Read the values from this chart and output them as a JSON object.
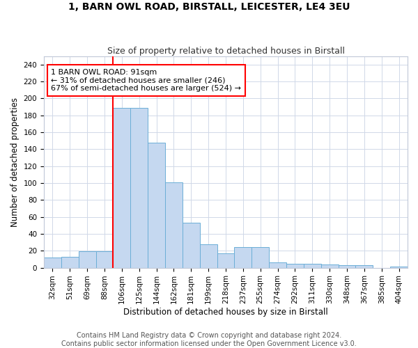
{
  "title": "1, BARN OWL ROAD, BIRSTALL, LEICESTER, LE4 3EU",
  "subtitle": "Size of property relative to detached houses in Birstall",
  "xlabel": "Distribution of detached houses by size in Birstall",
  "ylabel": "Number of detached properties",
  "categories": [
    "32sqm",
    "51sqm",
    "69sqm",
    "88sqm",
    "106sqm",
    "125sqm",
    "144sqm",
    "162sqm",
    "181sqm",
    "199sqm",
    "218sqm",
    "237sqm",
    "255sqm",
    "274sqm",
    "292sqm",
    "311sqm",
    "330sqm",
    "348sqm",
    "367sqm",
    "385sqm",
    "404sqm"
  ],
  "values": [
    12,
    13,
    19,
    19,
    189,
    189,
    148,
    101,
    53,
    28,
    17,
    24,
    24,
    6,
    5,
    5,
    4,
    3,
    3,
    0,
    1
  ],
  "bar_color": "#c5d8f0",
  "bar_edge_color": "#6baed6",
  "vline_x": 3.5,
  "vline_color": "red",
  "annotation_text": "1 BARN OWL ROAD: 91sqm\n← 31% of detached houses are smaller (246)\n67% of semi-detached houses are larger (524) →",
  "annotation_box_color": "white",
  "annotation_box_edge": "red",
  "ylim": [
    0,
    250
  ],
  "yticks": [
    0,
    20,
    40,
    60,
    80,
    100,
    120,
    140,
    160,
    180,
    200,
    220,
    240
  ],
  "footer1": "Contains HM Land Registry data © Crown copyright and database right 2024.",
  "footer2": "Contains public sector information licensed under the Open Government Licence v3.0.",
  "title_fontsize": 10,
  "subtitle_fontsize": 9,
  "axis_label_fontsize": 8.5,
  "tick_fontsize": 7.5,
  "annotation_fontsize": 8,
  "footer_fontsize": 7
}
